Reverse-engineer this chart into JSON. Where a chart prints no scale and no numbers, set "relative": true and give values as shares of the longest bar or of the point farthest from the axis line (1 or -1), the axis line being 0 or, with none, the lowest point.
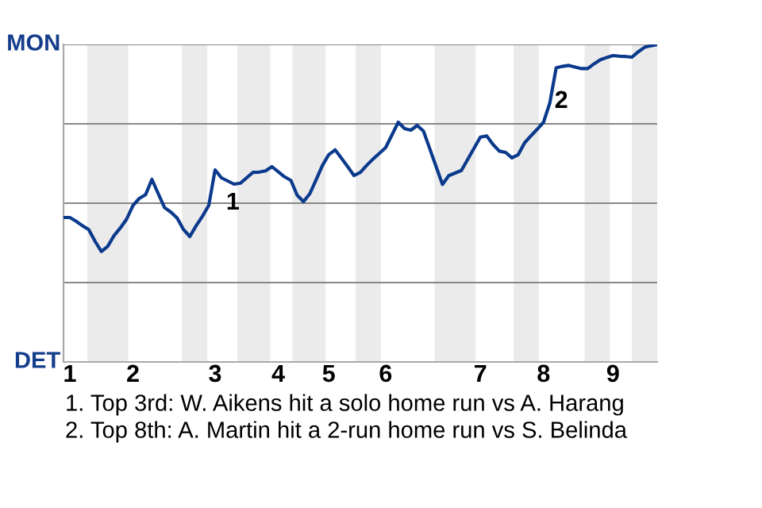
{
  "chart_data": {
    "type": "line",
    "relative": true,
    "categories": [
      null,
      "1",
      null,
      null,
      null,
      null,
      null,
      null,
      null,
      null,
      null,
      "2",
      null,
      null,
      null,
      null,
      null,
      null,
      null,
      null,
      null,
      null,
      null,
      null,
      "3",
      null,
      null,
      null,
      null,
      null,
      null,
      null,
      null,
      null,
      "4",
      null,
      null,
      null,
      null,
      null,
      null,
      null,
      "5",
      null,
      null,
      null,
      null,
      null,
      null,
      null,
      null,
      "6",
      null,
      null,
      null,
      null,
      null,
      null,
      null,
      null,
      null,
      null,
      null,
      null,
      null,
      null,
      "7",
      null,
      null,
      null,
      null,
      null,
      null,
      null,
      null,
      null,
      "8",
      null,
      null,
      null,
      null,
      null,
      null,
      null,
      null,
      null,
      null,
      "9",
      null,
      null,
      null,
      null,
      null,
      null,
      null
    ],
    "series": [
      {
        "color": "#0b3a8c",
        "values": [
          0.455,
          0.455,
          0.443,
          0.429,
          0.417,
          0.38,
          0.348,
          0.364,
          0.398,
          0.422,
          0.45,
          0.493,
          0.515,
          0.527,
          0.575,
          0.53,
          0.486,
          0.472,
          0.453,
          0.417,
          0.395,
          0.429,
          0.459,
          0.493,
          0.605,
          0.58,
          0.57,
          0.56,
          0.563,
          0.58,
          0.597,
          0.598,
          0.602,
          0.615,
          0.599,
          0.583,
          0.572,
          0.525,
          0.505,
          0.53,
          0.574,
          0.619,
          0.653,
          0.668,
          0.642,
          0.615,
          0.587,
          0.597,
          0.619,
          0.639,
          0.657,
          0.675,
          0.715,
          0.755,
          0.735,
          0.73,
          0.745,
          0.727,
          0.671,
          0.615,
          0.559,
          0.587,
          0.595,
          0.603,
          0.638,
          0.673,
          0.708,
          0.712,
          0.685,
          0.664,
          0.66,
          0.643,
          0.653,
          0.69,
          0.712,
          0.733,
          0.755,
          0.816,
          0.926,
          0.931,
          0.934,
          0.929,
          0.924,
          0.924,
          0.939,
          0.952,
          0.959,
          0.965,
          0.963,
          0.962,
          0.96,
          0.977,
          0.991,
          0.996,
          1.0
        ]
      }
    ],
    "ref_lines": [
      {
        "axis": "y",
        "value": 0.25,
        "color": "#888888"
      },
      {
        "axis": "y",
        "value": 0.5,
        "color": "#888888"
      },
      {
        "axis": "y",
        "value": 0.75,
        "color": "#888888"
      },
      {
        "axis": "y",
        "value": 1,
        "color": "#888888"
      }
    ],
    "annotations": [
      "MON",
      "DET",
      {
        "text": "1",
        "x": "3",
        "y": 0.5
      },
      {
        "text": "2",
        "x": "8",
        "y": 0.82
      },
      "1. Top 3rd: W. Aikens hit a solo home run vs A. Harang",
      "2. Top 8th: A. Martin hit a 2-run home run vs S. Belinda"
    ]
  }
}
